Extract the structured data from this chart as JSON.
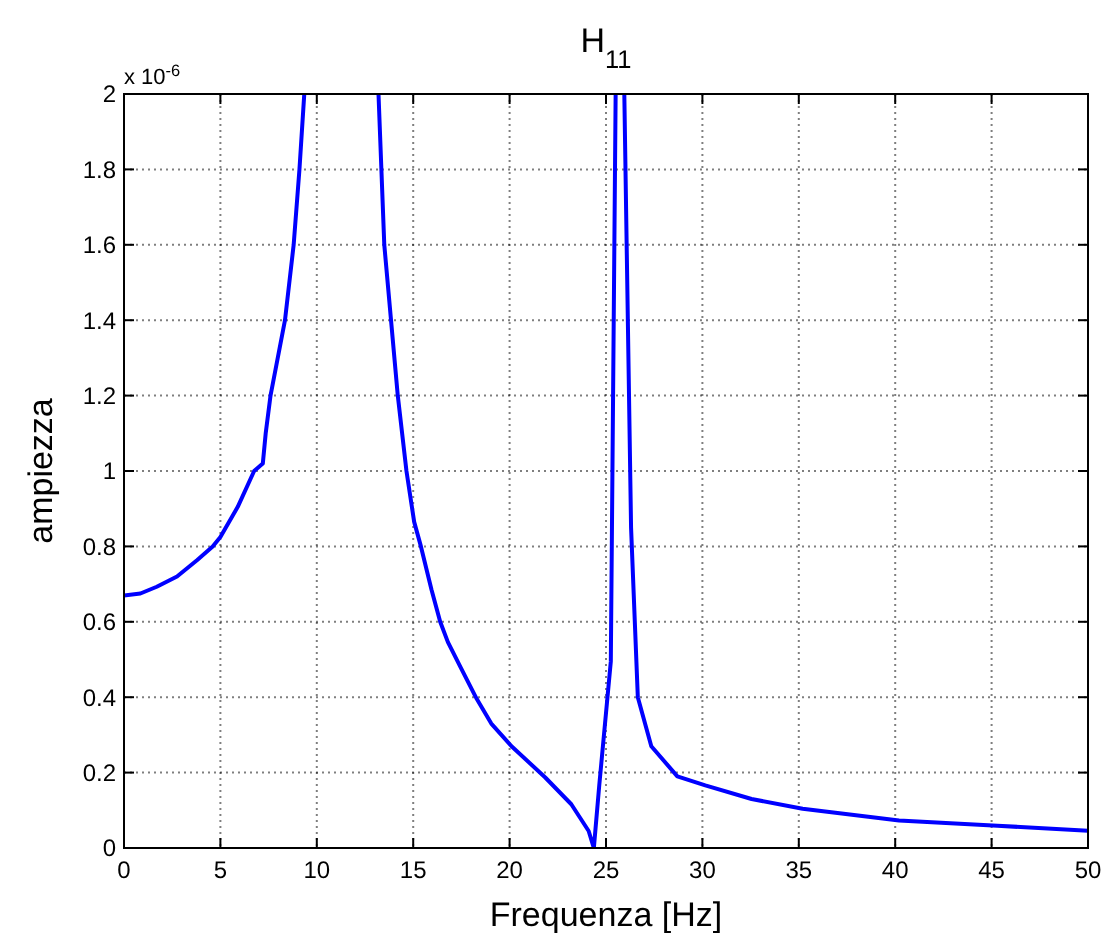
{
  "chart_data": {
    "type": "line",
    "title": "H$_{11}$",
    "xlabel": "Frequenza [Hz]",
    "ylabel": "ampiezza",
    "annotations": [
      "x 10$^{-6}$"
    ],
    "xlim": [
      0,
      50
    ],
    "xticks": [
      0,
      5,
      10,
      15,
      20,
      25,
      30,
      35,
      40,
      45,
      50
    ],
    "ylim": [
      0,
      2
    ],
    "yticks": [
      0,
      0.2,
      0.4,
      0.6,
      0.8,
      1,
      1.2,
      1.4,
      1.6,
      1.8,
      2
    ],
    "grid": true,
    "line_style": "solid",
    "marker": "none",
    "series": [
      {
        "color": "#0000ff",
        "x": [
          0,
          0.85,
          1.7,
          2.75,
          3.8,
          4.6,
          5.0,
          5.9,
          6.75,
          7.2,
          7.35,
          7.6,
          8.35,
          8.8,
          9.1,
          9.35,
          11.3,
          13.2,
          13.35,
          13.5,
          13.85,
          14.2,
          14.65,
          15.05,
          15.4,
          15.95,
          16.4,
          16.8,
          17.5,
          18.3,
          19.05,
          20.1,
          21.85,
          23.2,
          24.1,
          24.37,
          24.65,
          25.25,
          25.5,
          25.7,
          25.95,
          26.3,
          26.65,
          27.35,
          28.7,
          30.15,
          32.55,
          35.2,
          40.2,
          45.3,
          50
        ],
        "values": [
          0.67,
          0.675,
          0.693,
          0.72,
          0.764,
          0.8,
          0.825,
          0.905,
          1.0,
          1.02,
          1.1,
          1.2,
          1.4,
          1.6,
          1.8,
          2,
          null,
          2,
          1.8,
          1.6,
          1.4,
          1.2,
          1.0,
          0.865,
          0.8,
          0.685,
          0.6,
          0.546,
          0.475,
          0.395,
          0.33,
          0.27,
          0.187,
          0.116,
          0.045,
          0,
          0.166,
          0.495,
          2,
          null,
          2,
          0.85,
          0.4,
          0.27,
          0.19,
          0.166,
          0.13,
          0.104,
          0.073,
          0.059,
          0.046
        ]
      }
    ]
  }
}
